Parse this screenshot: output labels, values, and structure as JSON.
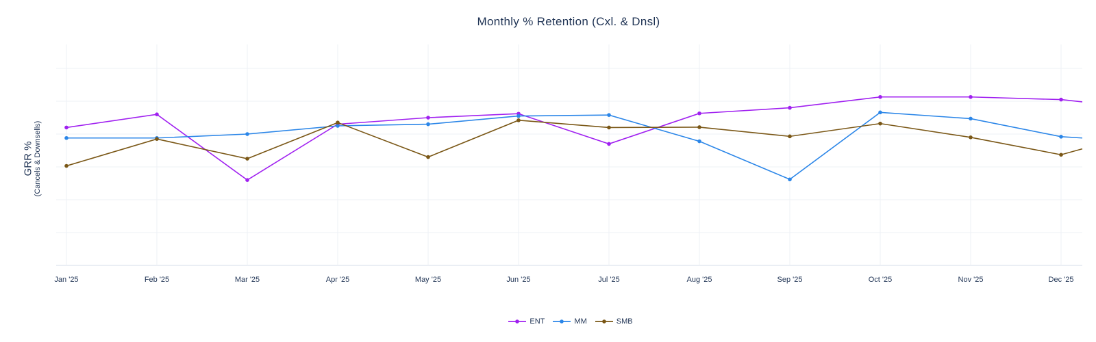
{
  "chart_data": {
    "type": "line",
    "title": "Monthly % Retention (Cxl. & Dnsl)",
    "ylabel": "GRR %",
    "ylabel_sub": "(Cancels & Downsells)",
    "xlabel": "",
    "categories": [
      "Jan '25",
      "Feb '25",
      "Mar '25",
      "Apr '25",
      "May '25",
      "Jun '25",
      "Jul '25",
      "Aug '25",
      "Sep '25",
      "Oct '25",
      "Nov '25",
      "Dec '25"
    ],
    "ylim": [
      0,
      6
    ],
    "grid": true,
    "legend_position": "bottom-center",
    "series": [
      {
        "name": "ENT",
        "color": "#a020f0",
        "values": [
          4.2,
          4.6,
          2.6,
          4.3,
          4.5,
          4.62,
          3.7,
          4.63,
          4.8,
          5.13,
          5.13,
          5.05
        ],
        "trailing_value": 4.98
      },
      {
        "name": "MM",
        "color": "#2b86e8",
        "values": [
          3.88,
          3.88,
          4.0,
          4.25,
          4.3,
          4.55,
          4.58,
          3.78,
          2.62,
          4.66,
          4.47,
          3.92
        ],
        "trailing_value": 3.88
      },
      {
        "name": "SMB",
        "color": "#7a5716",
        "values": [
          3.03,
          3.85,
          3.25,
          4.35,
          3.3,
          4.42,
          4.2,
          4.21,
          3.93,
          4.32,
          3.9,
          3.37
        ],
        "trailing_value": 3.55
      }
    ]
  }
}
